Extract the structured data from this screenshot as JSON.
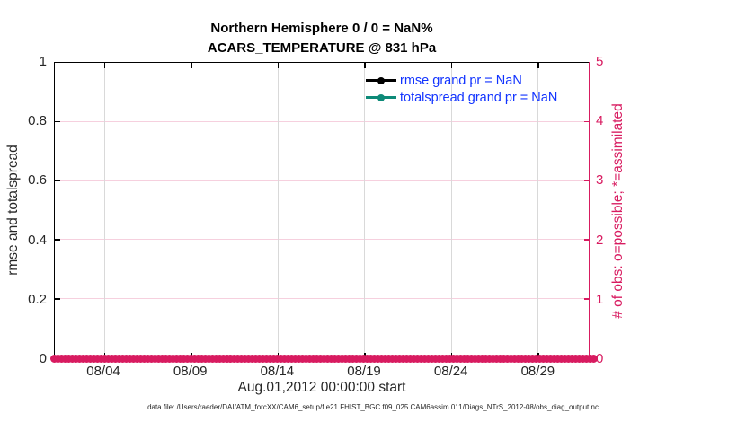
{
  "figure": {
    "title_line1": "Northern Hemisphere 0 / 0 = NaN%",
    "title_line2": "ACARS_TEMPERATURE @ 831 hPa",
    "xlabel": "Aug.01,2012 00:00:00 start",
    "footer": "data file: /Users/raeder/DAI/ATM_forcXX/CAM6_setup/f.e21.FHIST_BGC.f09_025.CAM6assim.011/Diags_NTrS_2012-08/obs_diag_output.nc"
  },
  "left_axis": {
    "label": "rmse and totalspread",
    "ticks": [
      "0",
      "0.2",
      "0.4",
      "0.6",
      "0.8",
      "1"
    ]
  },
  "right_axis": {
    "label": "# of obs: o=possible; *=assimilated",
    "ticks": [
      "0",
      "1",
      "2",
      "3",
      "4",
      "5"
    ]
  },
  "x_axis": {
    "ticks": [
      "08/04",
      "08/09",
      "08/14",
      "08/19",
      "08/24",
      "08/29"
    ]
  },
  "legend": {
    "items": [
      {
        "label": "rmse grand pr = NaN",
        "color": "#000000"
      },
      {
        "label": "totalspread grand pr = NaN",
        "color": "#0d8a78"
      }
    ]
  },
  "colors": {
    "crimson": "#d81b60",
    "teal": "#0d8a78",
    "legend_text_blue": "#1133ff",
    "grid_pink": "#f6d0de",
    "grid_gray": "#d9d9d9",
    "tick_text": "#262626"
  },
  "chart_data": {
    "type": "line",
    "title": "Northern Hemisphere 0 / 0 = NaN% | ACARS_TEMPERATURE @ 831 hPa",
    "xlabel": "Aug.01,2012 00:00:00 start",
    "x_tick_labels": [
      "08/04",
      "08/09",
      "08/14",
      "08/19",
      "08/24",
      "08/29"
    ],
    "x_range_days": [
      "2012-08-01",
      "2012-09-01"
    ],
    "left_ylabel": "rmse and totalspread",
    "left_ylim": [
      0,
      1
    ],
    "right_ylabel": "# of obs: o=possible; *=assimilated",
    "right_ylim": [
      0,
      5
    ],
    "grid": true,
    "legend_position": "top-right-inside, no box",
    "series": [
      {
        "name": "rmse grand pr = NaN",
        "axis": "left",
        "color": "#000000",
        "values_summary": "NaN (nothing plotted)"
      },
      {
        "name": "totalspread grand pr = NaN",
        "axis": "left",
        "color": "#0d8a78",
        "values_summary": "NaN (nothing plotted)"
      },
      {
        "name": "# of obs possible (o markers)",
        "axis": "right",
        "color": "#d81b60",
        "constant_value": 0
      },
      {
        "name": "# of obs assimilated (* markers)",
        "axis": "right",
        "color": "#d81b60",
        "constant_value": 0
      }
    ],
    "obs_marker_count": 151
  },
  "layout": {
    "xtick_frac_start": 0.0923,
    "xtick_frac_step": 0.1622
  }
}
